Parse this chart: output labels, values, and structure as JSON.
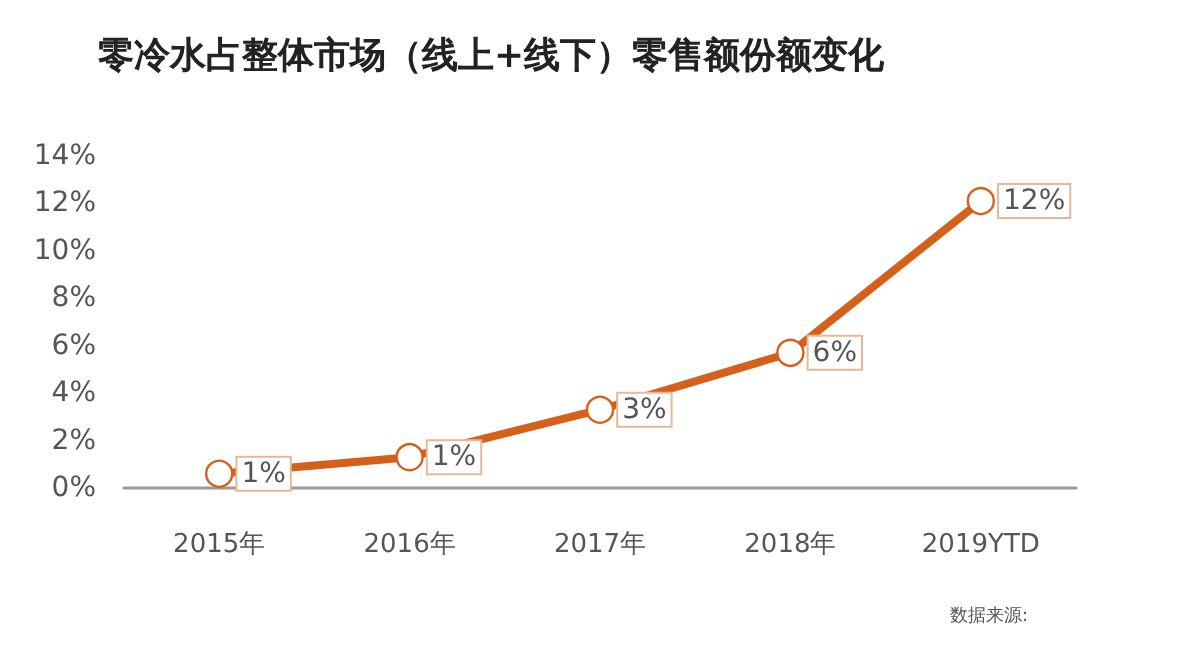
{
  "chart_data": {
    "type": "line",
    "title": "零冷水占整体市场（线上+线下）零售额份额变化",
    "categories": [
      "2015年",
      "2016年",
      "2017年",
      "2018年",
      "2019YTD"
    ],
    "series": [
      {
        "color": "#d4601a",
        "values": [
          0.6,
          1.3,
          3.3,
          5.7,
          12.1
        ],
        "value_labels": [
          "1%",
          "1%",
          "3%",
          "6%",
          "12%"
        ]
      }
    ],
    "ylim": [
      0,
      14
    ],
    "yticks": [
      {
        "value": 0,
        "label": "0%"
      },
      {
        "value": 2,
        "label": "2%"
      },
      {
        "value": 4,
        "label": "4%"
      },
      {
        "value": 6,
        "label": "6%"
      },
      {
        "value": 8,
        "label": "8%"
      },
      {
        "value": 10,
        "label": "10%"
      },
      {
        "value": 12,
        "label": "12%"
      },
      {
        "value": 14,
        "label": "14%"
      }
    ],
    "grid": false,
    "marker": "circle",
    "line_style": "solid",
    "annotations": [
      "数据来源:"
    ]
  }
}
